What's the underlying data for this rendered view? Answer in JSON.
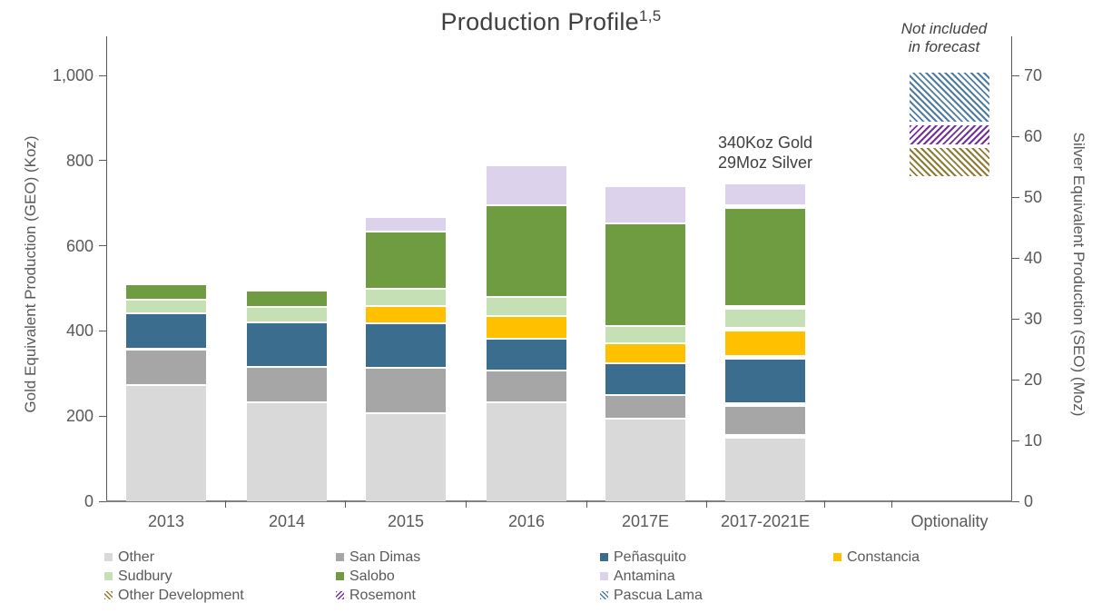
{
  "title": {
    "text": "Production Profile",
    "superscript": "1,5"
  },
  "not_included_note": {
    "line1": "Not included",
    "line2": "in forecast"
  },
  "annotation": {
    "line1": "340Koz Gold",
    "line2": "29Moz Silver"
  },
  "chart_data": {
    "type": "bar",
    "stacked": true,
    "title": "Production Profile",
    "grid": false,
    "categories": [
      "2013",
      "2014",
      "2015",
      "2016",
      "2017E",
      "2017-2021E",
      "Optionality"
    ],
    "left_axis": {
      "label": "Gold Equivalent Production (GEO) (Koz)",
      "unit": "Koz",
      "tick_values": [
        0,
        200,
        400,
        600,
        800,
        1000
      ],
      "tick_labels": [
        "0",
        "200",
        "400",
        "600",
        "800",
        "1,000"
      ],
      "range": [
        0,
        1090
      ]
    },
    "right_axis": {
      "label": "Silver Equivalent Production (SEO) (Moz)",
      "unit": "Moz",
      "tick_values": [
        0,
        10,
        20,
        30,
        40,
        50,
        60,
        70
      ],
      "tick_labels": [
        "0",
        "10",
        "20",
        "30",
        "40",
        "50",
        "60",
        "70"
      ],
      "range": [
        0,
        76
      ]
    },
    "series": [
      {
        "name": "Other",
        "color": "#d9d9d9",
        "pattern": "solid",
        "values": [
          270,
          230,
          205,
          230,
          192,
          147,
          0
        ]
      },
      {
        "name": "San Dimas",
        "color": "#a6a6a6",
        "pattern": "solid",
        "values": [
          85,
          83,
          107,
          75,
          56,
          75,
          0
        ]
      },
      {
        "name": "Peñasquito",
        "color": "#3a6d8e",
        "pattern": "solid",
        "values": [
          85,
          105,
          104,
          74,
          74,
          111,
          0
        ]
      },
      {
        "name": "Constancia",
        "color": "#ffc000",
        "pattern": "solid",
        "values": [
          0,
          0,
          40,
          54,
          46,
          65,
          0
        ]
      },
      {
        "name": "Sudbury",
        "color": "#c5e0b4",
        "pattern": "solid",
        "values": [
          32,
          36,
          40,
          45,
          41,
          52,
          0
        ]
      },
      {
        "name": "Salobo",
        "color": "#6f9b41",
        "pattern": "solid",
        "values": [
          35,
          39,
          136,
          214,
          241,
          237,
          0
        ]
      },
      {
        "name": "Antamina",
        "color": "#dcd2ec",
        "pattern": "solid",
        "values": [
          0,
          0,
          34,
          94,
          88,
          57,
          0
        ]
      }
    ],
    "optionality_stack": {
      "category": "Optionality",
      "note": "Not included in forecast",
      "base_koz": 755,
      "segments": [
        {
          "name": "Other Development",
          "color": "#8c7b33",
          "pattern": "hatch-up",
          "value_koz": 75
        },
        {
          "name": "Rosemont",
          "color": "#7030a0",
          "pattern": "hatch-down",
          "value_koz": 52
        },
        {
          "name": "Pascua Lama",
          "color": "#4e7ca1",
          "pattern": "hatch-up",
          "value_koz": 125
        }
      ]
    },
    "legend": [
      {
        "name": "Other",
        "color": "#d9d9d9",
        "pattern": "solid"
      },
      {
        "name": "San Dimas",
        "color": "#a6a6a6",
        "pattern": "solid"
      },
      {
        "name": "Peñasquito",
        "color": "#3a6d8e",
        "pattern": "solid"
      },
      {
        "name": "Constancia",
        "color": "#ffc000",
        "pattern": "solid"
      },
      {
        "name": "Sudbury",
        "color": "#c5e0b4",
        "pattern": "solid"
      },
      {
        "name": "Salobo",
        "color": "#6f9b41",
        "pattern": "solid"
      },
      {
        "name": "Antamina",
        "color": "#dcd2ec",
        "pattern": "solid"
      },
      {
        "name": "Other Development",
        "color": "#8c7b33",
        "pattern": "hatch-up"
      },
      {
        "name": "Rosemont",
        "color": "#7030a0",
        "pattern": "hatch-down"
      },
      {
        "name": "Pascua Lama",
        "color": "#4e7ca1",
        "pattern": "hatch-up"
      }
    ]
  }
}
